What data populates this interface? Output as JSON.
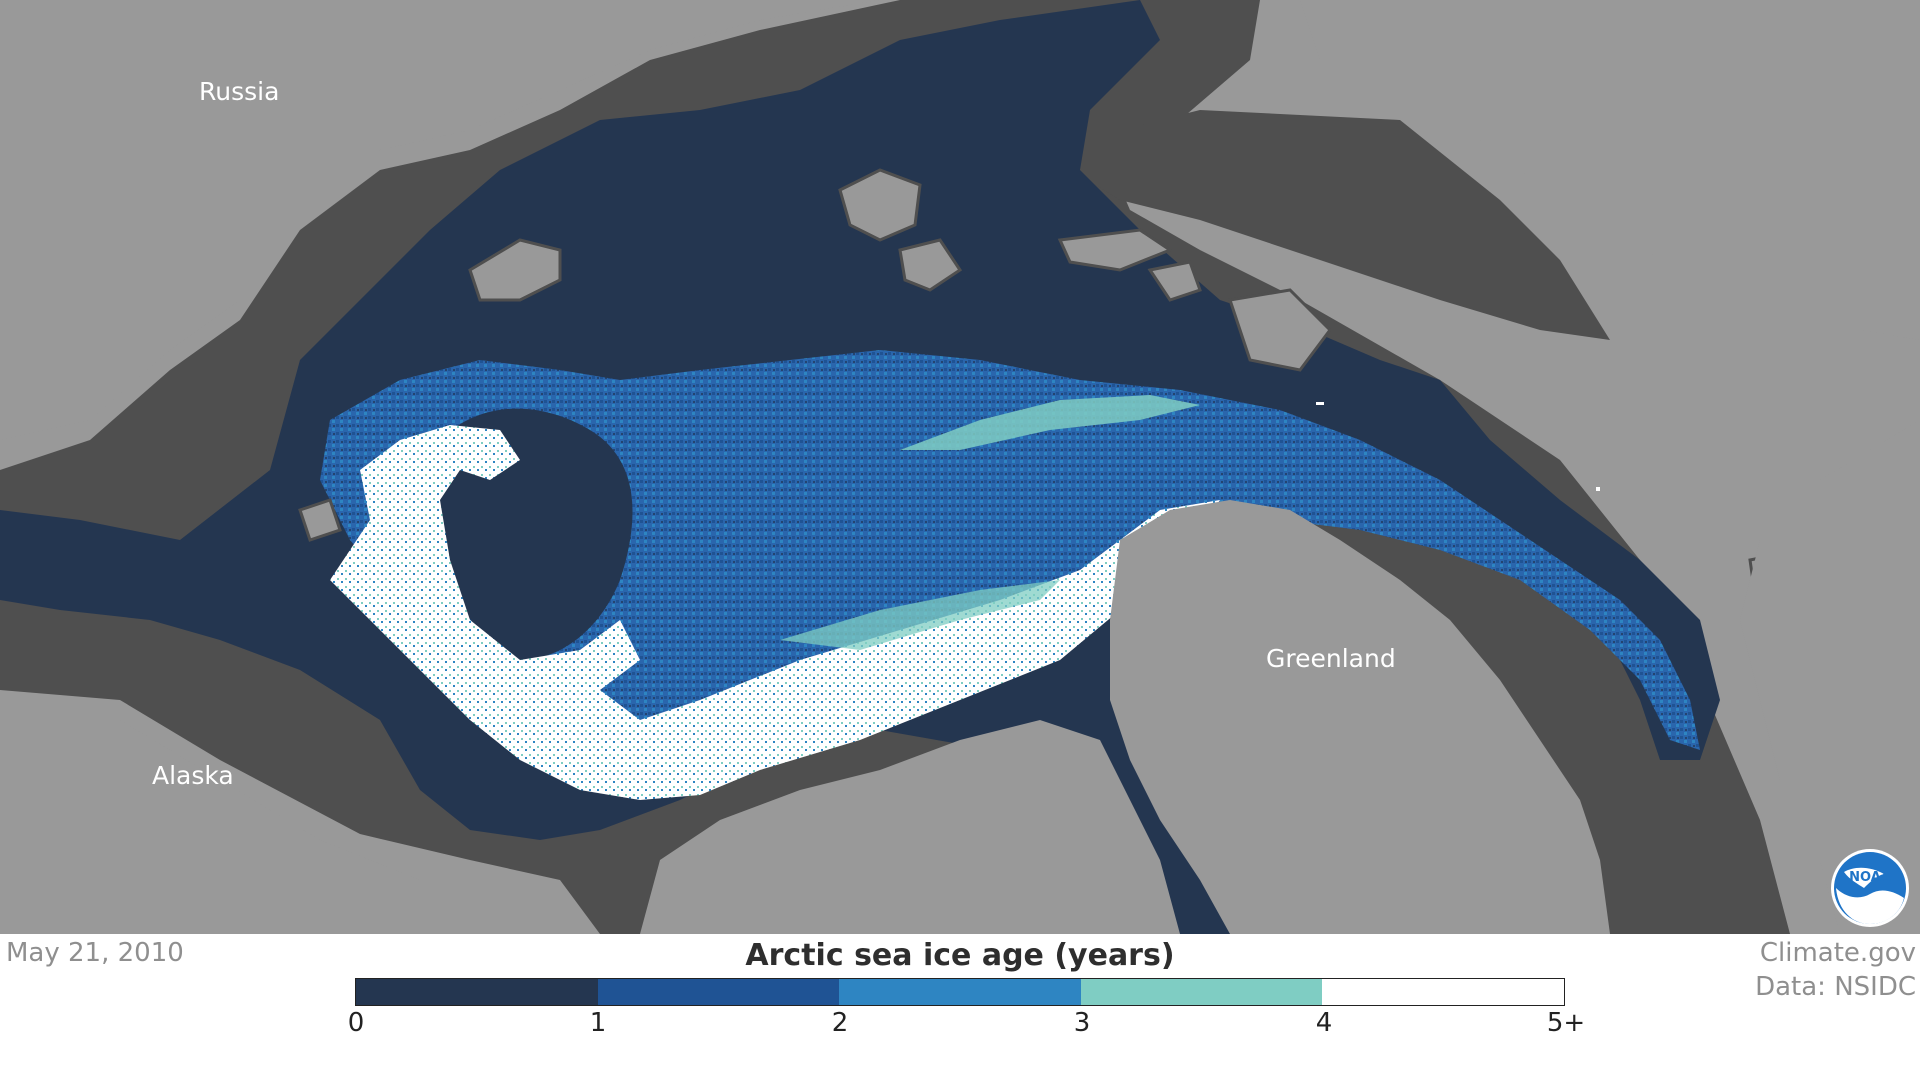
{
  "map": {
    "labels": {
      "russia": "Russia",
      "alaska": "Alaska",
      "greenland": "Greenland"
    },
    "colors": {
      "land": "#999999",
      "land_edge": "#4f4f4f",
      "ocean": "#243650",
      "age_1": "#1f5394",
      "age_2": "#2e85c2",
      "age_3": "#7fcdc3",
      "age_4": "#ffffff"
    }
  },
  "footer": {
    "date": "May 21, 2010",
    "credit_site": "Climate.gov",
    "credit_data": "Data: NSIDC"
  },
  "legend": {
    "title": "Arctic sea ice age (years)",
    "ticks": [
      "0",
      "1",
      "2",
      "3",
      "4",
      "5+"
    ],
    "colors": [
      "#243650",
      "#1f5394",
      "#2e85c2",
      "#7fcdc3",
      "#ffffff"
    ]
  },
  "logo": {
    "icon": "noaa-logo",
    "text": "NOAA"
  }
}
